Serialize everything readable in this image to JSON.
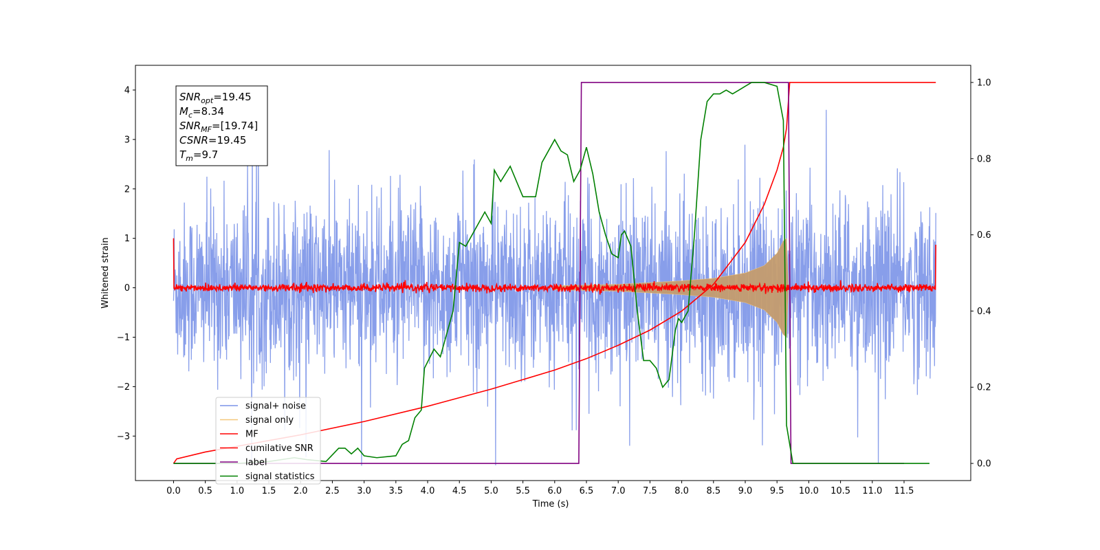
{
  "chart_data": {
    "type": "line",
    "xlabel": "Time (s)",
    "ylabel": "Whitened strain",
    "xlim": [
      -0.6,
      12.55
    ],
    "ylim": [
      -3.9,
      4.5
    ],
    "y2lim": [
      -0.045,
      1.045
    ],
    "x_ticks": [
      "0.0",
      "0.5",
      "1.0",
      "1.5",
      "2.0",
      "2.5",
      "3.0",
      "3.5",
      "4.0",
      "4.5",
      "5.0",
      "5.5",
      "6.0",
      "6.5",
      "7.0",
      "7.5",
      "8.0",
      "8.5",
      "9.0",
      "9.5",
      "10.0",
      "10.5",
      "11.0",
      "11.5"
    ],
    "y_ticks": [
      "−3",
      "−2",
      "−1",
      "0",
      "1",
      "2",
      "3",
      "4"
    ],
    "y2_ticks": [
      "0.0",
      "0.2",
      "0.4",
      "0.6",
      "0.8",
      "1.0"
    ],
    "info_box": [
      {
        "label": "SNR",
        "sub": "opt",
        "value": "=19.45"
      },
      {
        "label": "M",
        "sub": "c",
        "value": "=8.34"
      },
      {
        "label": "SNR",
        "sub": "MF",
        "value": "=[19.74]"
      },
      {
        "label": "CSNR",
        "sub": "",
        "value": "=19.45"
      },
      {
        "label": "T",
        "sub": "m",
        "value": "=9.7"
      }
    ],
    "legend": {
      "placement": "lower-left",
      "entries": [
        {
          "name": "signal+ noise",
          "color": "#7b93e8"
        },
        {
          "name": "signal only",
          "color": "#f5c77a"
        },
        {
          "name": "MF",
          "color": "#ff0000"
        },
        {
          "name": "cumilative SNR",
          "color": "#ff0000"
        },
        {
          "name": "label",
          "color": "#800080"
        },
        {
          "name": "signal statistics",
          "color": "#008000"
        }
      ]
    },
    "series": [
      {
        "name": "signal+ noise",
        "axis": "left",
        "description_kind": "noise_band",
        "t_range": [
          0.0,
          12.0
        ],
        "typical_amplitude": 1.3,
        "peak_amplitude": 3.6,
        "color": "#7b93e8"
      },
      {
        "name": "signal only",
        "axis": "left",
        "description_kind": "chirp_envelope",
        "envelope": [
          [
            6.0,
            0.04
          ],
          [
            7.0,
            0.07
          ],
          [
            8.0,
            0.14
          ],
          [
            8.5,
            0.19
          ],
          [
            9.0,
            0.3
          ],
          [
            9.3,
            0.45
          ],
          [
            9.5,
            0.7
          ],
          [
            9.6,
            0.95
          ],
          [
            9.65,
            1.0
          ],
          [
            9.68,
            0.0
          ]
        ],
        "color": "#c49c6e"
      },
      {
        "name": "MF",
        "axis": "left",
        "description_kind": "near_zero_noise",
        "t_range": [
          0.0,
          12.0
        ],
        "start_value": 1.0,
        "end_value": 0.87,
        "color": "#ff0000"
      },
      {
        "name": "cumilative SNR",
        "axis": "right",
        "points": [
          [
            0.0,
            0.0
          ],
          [
            0.05,
            0.012
          ],
          [
            0.5,
            0.03
          ],
          [
            1.0,
            0.045
          ],
          [
            2.0,
            0.075
          ],
          [
            3.0,
            0.11
          ],
          [
            4.0,
            0.15
          ],
          [
            5.0,
            0.195
          ],
          [
            6.0,
            0.245
          ],
          [
            6.5,
            0.275
          ],
          [
            7.0,
            0.31
          ],
          [
            7.5,
            0.35
          ],
          [
            8.0,
            0.4
          ],
          [
            8.5,
            0.47
          ],
          [
            9.0,
            0.58
          ],
          [
            9.3,
            0.68
          ],
          [
            9.5,
            0.77
          ],
          [
            9.6,
            0.83
          ],
          [
            9.65,
            0.88
          ],
          [
            9.7,
            1.0
          ],
          [
            12.0,
            1.0
          ]
        ],
        "color": "#ff0000"
      },
      {
        "name": "label",
        "axis": "right",
        "points": [
          [
            0.0,
            0.0
          ],
          [
            6.38,
            0.0
          ],
          [
            6.42,
            1.0
          ],
          [
            9.68,
            1.0
          ],
          [
            9.72,
            0.0
          ],
          [
            11.5,
            0.0
          ]
        ],
        "color": "#800080"
      },
      {
        "name": "signal statistics",
        "axis": "right",
        "points": [
          [
            0.0,
            0.0
          ],
          [
            0.5,
            0.0
          ],
          [
            1.0,
            0.0
          ],
          [
            1.5,
            0.005
          ],
          [
            1.9,
            0.015
          ],
          [
            2.1,
            0.01
          ],
          [
            2.4,
            0.005
          ],
          [
            2.6,
            0.04
          ],
          [
            2.7,
            0.04
          ],
          [
            2.8,
            0.025
          ],
          [
            2.9,
            0.04
          ],
          [
            3.0,
            0.02
          ],
          [
            3.2,
            0.015
          ],
          [
            3.5,
            0.02
          ],
          [
            3.6,
            0.05
          ],
          [
            3.7,
            0.06
          ],
          [
            3.8,
            0.12
          ],
          [
            3.9,
            0.14
          ],
          [
            3.95,
            0.25
          ],
          [
            4.1,
            0.3
          ],
          [
            4.2,
            0.28
          ],
          [
            4.4,
            0.4
          ],
          [
            4.5,
            0.58
          ],
          [
            4.6,
            0.57
          ],
          [
            4.7,
            0.6
          ],
          [
            4.9,
            0.66
          ],
          [
            5.0,
            0.63
          ],
          [
            5.05,
            0.77
          ],
          [
            5.15,
            0.74
          ],
          [
            5.3,
            0.78
          ],
          [
            5.5,
            0.7
          ],
          [
            5.6,
            0.7
          ],
          [
            5.7,
            0.7
          ],
          [
            5.8,
            0.79
          ],
          [
            5.9,
            0.82
          ],
          [
            6.0,
            0.85
          ],
          [
            6.1,
            0.82
          ],
          [
            6.2,
            0.81
          ],
          [
            6.3,
            0.74
          ],
          [
            6.4,
            0.77
          ],
          [
            6.5,
            0.83
          ],
          [
            6.6,
            0.76
          ],
          [
            6.7,
            0.66
          ],
          [
            6.8,
            0.6
          ],
          [
            6.9,
            0.55
          ],
          [
            7.0,
            0.54
          ],
          [
            7.05,
            0.6
          ],
          [
            7.1,
            0.61
          ],
          [
            7.2,
            0.57
          ],
          [
            7.3,
            0.4
          ],
          [
            7.4,
            0.27
          ],
          [
            7.5,
            0.27
          ],
          [
            7.6,
            0.25
          ],
          [
            7.7,
            0.2
          ],
          [
            7.8,
            0.22
          ],
          [
            7.9,
            0.35
          ],
          [
            7.95,
            0.38
          ],
          [
            8.0,
            0.37
          ],
          [
            8.1,
            0.4
          ],
          [
            8.2,
            0.6
          ],
          [
            8.3,
            0.85
          ],
          [
            8.4,
            0.95
          ],
          [
            8.5,
            0.97
          ],
          [
            8.6,
            0.97
          ],
          [
            8.7,
            0.98
          ],
          [
            8.8,
            0.97
          ],
          [
            8.9,
            0.98
          ],
          [
            9.0,
            0.99
          ],
          [
            9.1,
            1.0
          ],
          [
            9.3,
            1.0
          ],
          [
            9.5,
            0.99
          ],
          [
            9.6,
            0.9
          ],
          [
            9.65,
            0.1
          ],
          [
            9.75,
            0.0
          ],
          [
            10.5,
            0.0
          ],
          [
            11.0,
            0.0
          ],
          [
            11.5,
            0.0
          ],
          [
            11.9,
            0.0
          ]
        ],
        "color": "#008000"
      }
    ],
    "colors": {
      "noise": "#7b93e8",
      "signal_fill": "#c49c6e",
      "mf": "#ff0000",
      "label": "#800080",
      "statistics": "#008000"
    }
  }
}
